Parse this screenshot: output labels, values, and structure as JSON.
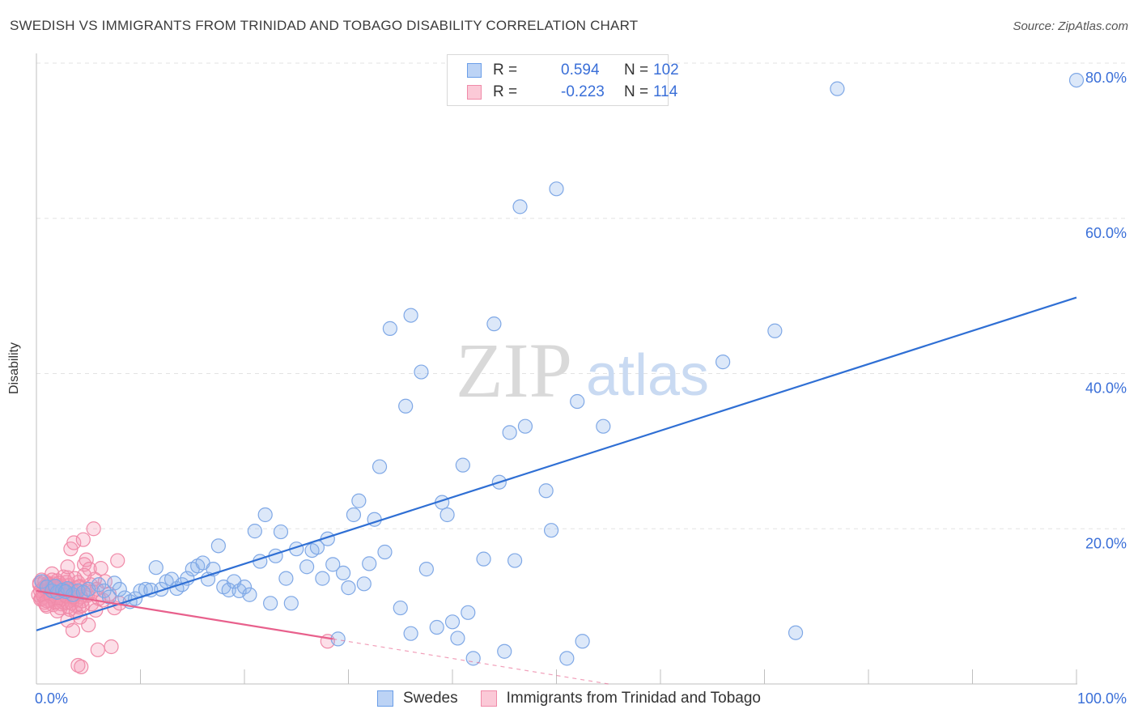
{
  "title": "SWEDISH VS IMMIGRANTS FROM TRINIDAD AND TOBAGO DISABILITY CORRELATION CHART",
  "source": "Source: ZipAtlas.com",
  "watermark": {
    "zip": "ZIP",
    "atlas": "atlas"
  },
  "legend_top": {
    "rows": [
      {
        "r_label": "R =",
        "r_value": "0.594",
        "n_label": "N =",
        "n_value": "102",
        "color": "#6a9ee8"
      },
      {
        "r_label": "R =",
        "r_value": "-0.223",
        "n_label": "N =",
        "n_value": "114",
        "color": "#f08aa8"
      }
    ]
  },
  "legend_bottom": [
    {
      "label": "Swedes",
      "color": "#6a9ee8"
    },
    {
      "label": "Immigrants from Trinidad and Tobago",
      "color": "#f08aa8"
    }
  ],
  "chart_data": {
    "type": "scatter",
    "title": "SWEDISH VS IMMIGRANTS FROM TRINIDAD AND TOBAGO DISABILITY CORRELATION CHART",
    "xlabel": "",
    "ylabel": "Disability",
    "xlim": [
      0,
      100
    ],
    "ylim": [
      0,
      80
    ],
    "x_tick_labels": [
      "0.0%",
      "100.0%"
    ],
    "y_ticks": [
      20,
      40,
      60,
      80
    ],
    "y_tick_labels": [
      "20.0%",
      "40.0%",
      "60.0%",
      "80.0%"
    ],
    "grid": true,
    "legend_position": "top-center",
    "series": [
      {
        "name": "Swedes",
        "color": "#6a9ee8",
        "trend": {
          "x": [
            0,
            100
          ],
          "y": [
            6.9,
            49.8
          ]
        },
        "points": [
          [
            0.5,
            13.2
          ],
          [
            1.0,
            12.5
          ],
          [
            1.5,
            12.0
          ],
          [
            2.0,
            11.8
          ],
          [
            2.5,
            12.1
          ],
          [
            3.0,
            12.3
          ],
          [
            3.5,
            11.5
          ],
          [
            4.0,
            12.0
          ],
          [
            4.5,
            11.8
          ],
          [
            5.0,
            12.2
          ],
          [
            6.0,
            12.8
          ],
          [
            6.5,
            12.0
          ],
          [
            7.0,
            11.2
          ],
          [
            7.5,
            13.0
          ],
          [
            8.0,
            12.2
          ],
          [
            8.5,
            11.1
          ],
          [
            9.0,
            10.6
          ],
          [
            9.5,
            11.0
          ],
          [
            10.0,
            12.0
          ],
          [
            10.5,
            12.2
          ],
          [
            11.0,
            12.1
          ],
          [
            11.5,
            15.0
          ],
          [
            12.0,
            12.2
          ],
          [
            12.5,
            13.2
          ],
          [
            13.0,
            13.5
          ],
          [
            13.5,
            12.3
          ],
          [
            14.0,
            12.8
          ],
          [
            14.5,
            13.6
          ],
          [
            15.0,
            14.8
          ],
          [
            15.5,
            15.2
          ],
          [
            16.0,
            15.6
          ],
          [
            16.5,
            13.5
          ],
          [
            17.0,
            14.8
          ],
          [
            17.5,
            17.8
          ],
          [
            18.0,
            12.5
          ],
          [
            18.5,
            12.1
          ],
          [
            19.0,
            13.2
          ],
          [
            19.5,
            12.0
          ],
          [
            20.0,
            12.5
          ],
          [
            20.5,
            11.5
          ],
          [
            21.0,
            19.7
          ],
          [
            21.5,
            15.8
          ],
          [
            22.0,
            21.8
          ],
          [
            22.5,
            10.4
          ],
          [
            23.0,
            16.5
          ],
          [
            23.5,
            19.6
          ],
          [
            24.0,
            13.6
          ],
          [
            24.5,
            10.4
          ],
          [
            25.0,
            17.4
          ],
          [
            26.0,
            15.1
          ],
          [
            26.5,
            17.2
          ],
          [
            27.0,
            17.6
          ],
          [
            27.5,
            13.6
          ],
          [
            28.0,
            18.7
          ],
          [
            28.5,
            15.4
          ],
          [
            29.0,
            5.8
          ],
          [
            29.5,
            14.3
          ],
          [
            30.0,
            12.4
          ],
          [
            30.5,
            21.8
          ],
          [
            31.0,
            23.6
          ],
          [
            31.5,
            12.9
          ],
          [
            32.0,
            15.5
          ],
          [
            32.5,
            21.2
          ],
          [
            33.0,
            28.0
          ],
          [
            33.5,
            17.0
          ],
          [
            34.0,
            45.8
          ],
          [
            35.0,
            9.8
          ],
          [
            35.5,
            35.8
          ],
          [
            36.0,
            47.5
          ],
          [
            36.0,
            6.5
          ],
          [
            37.0,
            40.2
          ],
          [
            37.5,
            14.8
          ],
          [
            38.5,
            7.3
          ],
          [
            39.0,
            23.4
          ],
          [
            39.5,
            21.8
          ],
          [
            40.0,
            8.0
          ],
          [
            40.5,
            5.9
          ],
          [
            41.0,
            28.2
          ],
          [
            41.5,
            9.2
          ],
          [
            42.0,
            3.3
          ],
          [
            43.0,
            16.1
          ],
          [
            44.0,
            46.4
          ],
          [
            44.5,
            26.0
          ],
          [
            45.0,
            4.2
          ],
          [
            45.5,
            32.4
          ],
          [
            46.0,
            15.9
          ],
          [
            46.5,
            61.5
          ],
          [
            47.0,
            33.2
          ],
          [
            49.0,
            24.9
          ],
          [
            49.5,
            19.8
          ],
          [
            50.0,
            63.8
          ],
          [
            51.0,
            3.3
          ],
          [
            52.0,
            36.4
          ],
          [
            52.5,
            5.5
          ],
          [
            54.5,
            33.2
          ],
          [
            66.0,
            41.5
          ],
          [
            71.0,
            45.5
          ],
          [
            73.0,
            6.6
          ],
          [
            77.0,
            76.7
          ],
          [
            100.0,
            77.8
          ],
          [
            1.8,
            12.6
          ],
          [
            2.8,
            11.9
          ]
        ]
      },
      {
        "name": "Immigrants from Trinidad and Tobago",
        "color": "#f08aa8",
        "trend": {
          "x": [
            0,
            28.5
          ],
          "y": [
            12.0,
            5.8
          ]
        },
        "trend_dashed": {
          "x": [
            28.5,
            55
          ],
          "y": [
            5.8,
            0.0
          ]
        },
        "points": [
          [
            0.2,
            11.5
          ],
          [
            0.3,
            12.8
          ],
          [
            0.4,
            10.9
          ],
          [
            0.5,
            13.4
          ],
          [
            0.6,
            12.1
          ],
          [
            0.7,
            11.2
          ],
          [
            0.8,
            10.5
          ],
          [
            0.9,
            12.6
          ],
          [
            1.0,
            11.9
          ],
          [
            1.1,
            13.0
          ],
          [
            1.2,
            10.8
          ],
          [
            1.3,
            12.3
          ],
          [
            1.4,
            11.4
          ],
          [
            1.5,
            14.2
          ],
          [
            1.6,
            10.2
          ],
          [
            1.7,
            12.9
          ],
          [
            1.8,
            11.7
          ],
          [
            1.9,
            10.6
          ],
          [
            2.0,
            13.3
          ],
          [
            2.1,
            12.2
          ],
          [
            2.2,
            11.1
          ],
          [
            2.3,
            9.8
          ],
          [
            2.4,
            12.5
          ],
          [
            2.5,
            11.0
          ],
          [
            2.6,
            13.8
          ],
          [
            2.7,
            10.4
          ],
          [
            2.8,
            12.0
          ],
          [
            2.9,
            11.6
          ],
          [
            3.0,
            8.2
          ],
          [
            3.1,
            12.7
          ],
          [
            3.2,
            10.9
          ],
          [
            3.3,
            17.4
          ],
          [
            3.4,
            11.3
          ],
          [
            3.5,
            6.9
          ],
          [
            3.6,
            18.2
          ],
          [
            3.7,
            12.4
          ],
          [
            3.8,
            10.1
          ],
          [
            3.9,
            11.8
          ],
          [
            4.0,
            13.1
          ],
          [
            4.1,
            9.9
          ],
          [
            4.2,
            12.6
          ],
          [
            4.3,
            11.2
          ],
          [
            4.4,
            10.7
          ],
          [
            4.5,
            18.6
          ],
          [
            4.6,
            15.4
          ],
          [
            4.7,
            12.0
          ],
          [
            4.8,
            16.0
          ],
          [
            4.9,
            11.4
          ],
          [
            5.0,
            7.6
          ],
          [
            5.1,
            14.8
          ],
          [
            5.2,
            12.8
          ],
          [
            5.3,
            10.3
          ],
          [
            5.4,
            11.9
          ],
          [
            5.5,
            20.0
          ],
          [
            5.6,
            13.5
          ],
          [
            5.7,
            9.5
          ],
          [
            5.8,
            12.2
          ],
          [
            5.9,
            4.4
          ],
          [
            6.0,
            11.0
          ],
          [
            6.2,
            14.9
          ],
          [
            6.4,
            10.8
          ],
          [
            6.6,
            13.2
          ],
          [
            7.0,
            11.6
          ],
          [
            7.2,
            4.8
          ],
          [
            7.5,
            9.8
          ],
          [
            7.8,
            15.9
          ],
          [
            8.0,
            10.4
          ],
          [
            4.0,
            2.4
          ],
          [
            4.3,
            2.2
          ],
          [
            4.6,
            14.0
          ],
          [
            0.3,
            13.0
          ],
          [
            0.5,
            11.0
          ],
          [
            0.7,
            12.4
          ],
          [
            0.9,
            10.2
          ],
          [
            1.1,
            12.0
          ],
          [
            1.3,
            11.6
          ],
          [
            1.5,
            13.4
          ],
          [
            1.7,
            10.9
          ],
          [
            1.9,
            12.3
          ],
          [
            2.1,
            11.4
          ],
          [
            2.3,
            12.7
          ],
          [
            2.5,
            10.6
          ],
          [
            2.7,
            11.8
          ],
          [
            2.9,
            13.1
          ],
          [
            3.1,
            10.0
          ],
          [
            3.3,
            12.2
          ],
          [
            3.5,
            11.1
          ],
          [
            3.7,
            13.6
          ],
          [
            3.9,
            10.8
          ],
          [
            4.1,
            12.5
          ],
          [
            0.4,
            12.0
          ],
          [
            0.6,
            11.5
          ],
          [
            0.8,
            13.2
          ],
          [
            1.0,
            10.7
          ],
          [
            1.2,
            12.8
          ],
          [
            1.4,
            11.3
          ],
          [
            1.6,
            12.6
          ],
          [
            1.8,
            10.5
          ],
          [
            2.0,
            11.9
          ],
          [
            2.2,
            13.0
          ],
          [
            2.4,
            10.3
          ],
          [
            2.6,
            12.1
          ],
          [
            2.8,
            11.4
          ],
          [
            3.0,
            13.7
          ],
          [
            3.2,
            9.6
          ],
          [
            3.4,
            10.4
          ],
          [
            3.6,
            11.2
          ],
          [
            3.8,
            9.2
          ],
          [
            4.2,
            8.6
          ],
          [
            4.4,
            10.1
          ],
          [
            28.0,
            5.5
          ],
          [
            3.0,
            15.1
          ],
          [
            2.0,
            9.4
          ],
          [
            1.0,
            10.0
          ]
        ]
      }
    ]
  }
}
